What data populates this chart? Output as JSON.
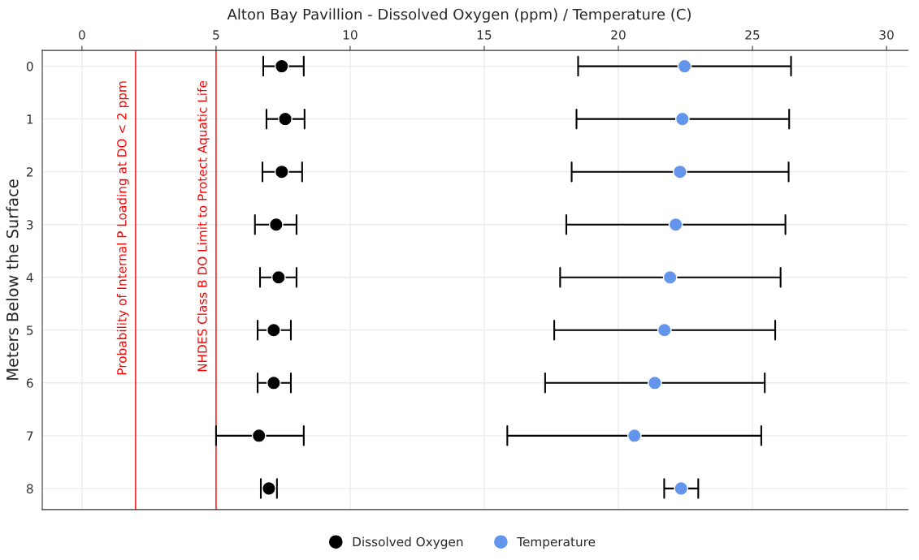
{
  "chart_data": {
    "type": "scatter",
    "orientation": "horizontal",
    "title": "Alton Bay Pavillion - Dissolved Oxygen (ppm) / Temperature (C)",
    "ylabel": "Meters Below the Surface",
    "categories": [
      "0",
      "1",
      "2",
      "3",
      "4",
      "5",
      "6",
      "7",
      "8"
    ],
    "series": [
      {
        "name": "Dissolved Oxygen",
        "color": "#000000",
        "values": [
          7.45,
          7.58,
          7.45,
          7.24,
          7.33,
          7.15,
          7.15,
          6.6,
          6.97
        ],
        "errors": [
          [
            6.76,
            8.27
          ],
          [
            6.88,
            8.3
          ],
          [
            6.73,
            8.21
          ],
          [
            6.45,
            8.0
          ],
          [
            6.64,
            8.0
          ],
          [
            6.55,
            7.79
          ],
          [
            6.55,
            7.79
          ],
          [
            5.0,
            8.27
          ],
          [
            6.67,
            7.27
          ]
        ]
      },
      {
        "name": "Temperature",
        "color": "#6495ed",
        "values": [
          22.47,
          22.39,
          22.3,
          22.14,
          21.93,
          21.72,
          21.36,
          20.6,
          22.34
        ],
        "errors": [
          [
            18.5,
            26.44
          ],
          [
            18.44,
            26.37
          ],
          [
            18.26,
            26.35
          ],
          [
            18.06,
            26.23
          ],
          [
            17.83,
            26.05
          ],
          [
            17.61,
            25.85
          ],
          [
            17.27,
            25.46
          ],
          [
            15.86,
            25.33
          ],
          [
            21.71,
            22.98
          ]
        ]
      }
    ],
    "xlim": [
      -1.48,
      30.8
    ],
    "xticks": [
      0,
      5,
      10,
      15,
      20,
      25,
      30
    ],
    "ref_lines": [
      {
        "axis": "x",
        "value": 2,
        "label": "Probability of Internal P Loading at DO < 2 ppm",
        "color": "#ff0000"
      },
      {
        "axis": "x",
        "value": 5,
        "label": "NHDES Class B DO Limit to Protect Aquatic Life",
        "color": "#ff0000"
      }
    ],
    "grid": true,
    "legend": "bottom",
    "marker": "circle"
  }
}
